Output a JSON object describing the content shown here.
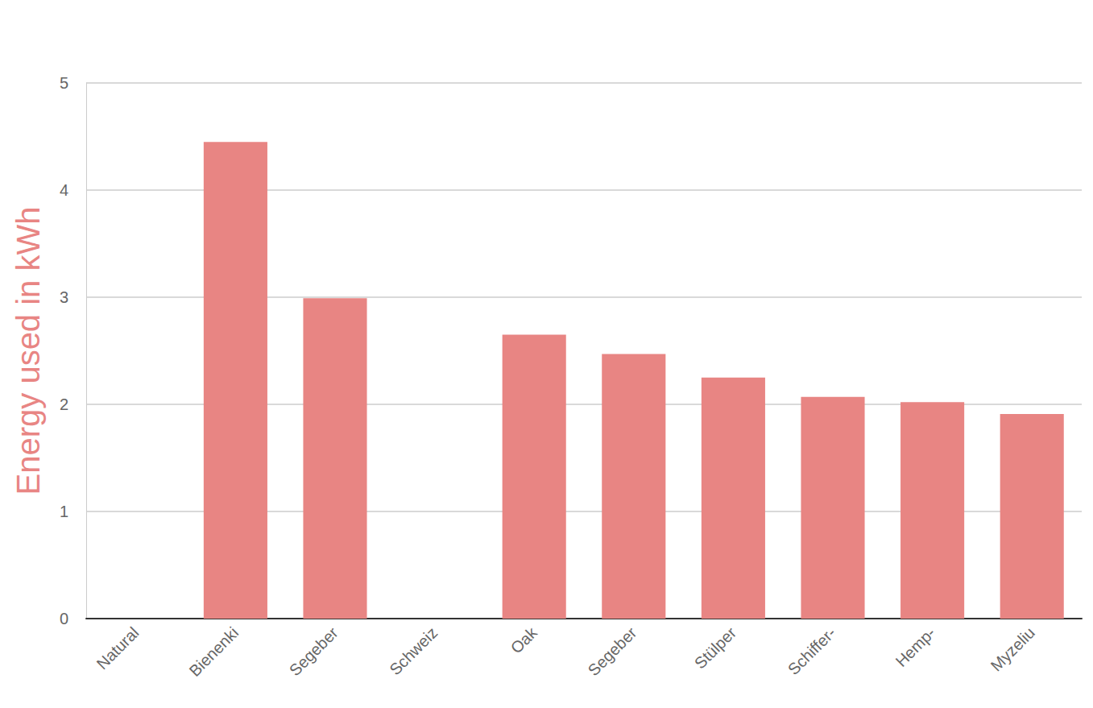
{
  "chart_data": {
    "type": "bar",
    "y_label": "Energy used in kWh",
    "categories": [
      "Natural",
      "Bienenki",
      "Segeber",
      "Schweiz",
      "Oak",
      "Segeber",
      "Stülper",
      "Schiffer-",
      "Hemp-",
      "Myzeliu"
    ],
    "values": [
      null,
      4.45,
      2.99,
      null,
      2.65,
      2.47,
      2.25,
      2.07,
      2.02,
      1.91
    ],
    "color": "#e88583",
    "ylim": [
      0,
      5
    ],
    "yticks": [
      0,
      1,
      2,
      3,
      4,
      5
    ],
    "grid": true
  }
}
